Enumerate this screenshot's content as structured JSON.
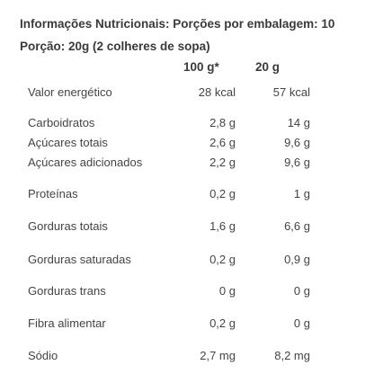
{
  "header": {
    "line1": "Informações Nutricionais: Porções por embalagem: 10",
    "line2": "Porção: 20g (2 colheres de sopa)"
  },
  "columns": {
    "col1": "100 g*",
    "col2": "20 g"
  },
  "rows": [
    {
      "label": "Valor energético",
      "per100": "28 kcal",
      "perServing": "57 kcal"
    },
    {
      "label": "Carboidratos",
      "per100": "2,8 g",
      "perServing": "14 g"
    },
    {
      "label": "Açúcares totais",
      "per100": "2,6 g",
      "perServing": "9,6 g"
    },
    {
      "label": "Açúcares adicionados",
      "per100": "2,2 g",
      "perServing": "9,6 g"
    },
    {
      "label": "Proteínas",
      "per100": "0,2 g",
      "perServing": "1 g"
    },
    {
      "label": "Gorduras totais",
      "per100": "1,6 g",
      "perServing": "6,6 g"
    },
    {
      "label": "Gorduras saturadas",
      "per100": "0,2 g",
      "perServing": "0,9 g"
    },
    {
      "label": "Gorduras trans",
      "per100": "0 g",
      "perServing": "0 g"
    },
    {
      "label": "Fibra alimentar",
      "per100": "0,2 g",
      "perServing": "0 g"
    },
    {
      "label": "Sódio",
      "per100": "2,7 mg",
      "perServing": "8,2 mg"
    }
  ]
}
